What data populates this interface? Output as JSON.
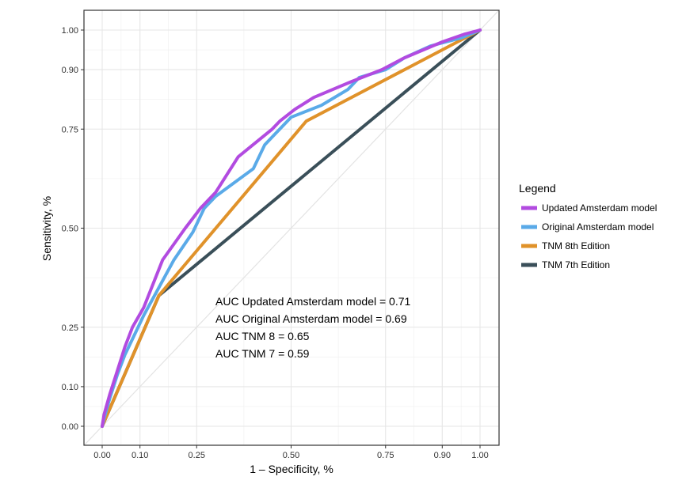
{
  "chart_data": {
    "type": "line",
    "xlabel": "1 – Specificity, %",
    "ylabel": "Sensitivity, %",
    "xlim": [
      0,
      1
    ],
    "ylim": [
      0,
      1
    ],
    "x_ticks": [
      0.0,
      0.1,
      0.25,
      0.5,
      0.75,
      0.9,
      1.0
    ],
    "x_tick_labels": [
      "0.00",
      "0.10",
      "0.25",
      "0.50",
      "0.75",
      "0.90",
      "1.00"
    ],
    "y_ticks": [
      0.0,
      0.1,
      0.25,
      0.5,
      0.75,
      0.9,
      1.0
    ],
    "y_tick_labels": [
      "0.00",
      "0.10",
      "0.25",
      "0.50",
      "0.75",
      "0.90",
      "1.00"
    ],
    "grid": true,
    "reference_diagonal": true,
    "legend_title": "Legend",
    "legend_position": "right",
    "series": [
      {
        "name": "Updated Amsterdam model",
        "color": "#b24be0",
        "points": [
          [
            0,
            0
          ],
          [
            0.005,
            0.03
          ],
          [
            0.02,
            0.08
          ],
          [
            0.04,
            0.14
          ],
          [
            0.06,
            0.2
          ],
          [
            0.08,
            0.25
          ],
          [
            0.11,
            0.3
          ],
          [
            0.16,
            0.42
          ],
          [
            0.22,
            0.5
          ],
          [
            0.26,
            0.55
          ],
          [
            0.3,
            0.59
          ],
          [
            0.36,
            0.68
          ],
          [
            0.45,
            0.75
          ],
          [
            0.47,
            0.77
          ],
          [
            0.51,
            0.8
          ],
          [
            0.56,
            0.83
          ],
          [
            0.66,
            0.87
          ],
          [
            0.74,
            0.9
          ],
          [
            0.8,
            0.93
          ],
          [
            0.9,
            0.97
          ],
          [
            0.96,
            0.99
          ],
          [
            1,
            1
          ]
        ]
      },
      {
        "name": "Original Amsterdam model",
        "color": "#5aaae8",
        "points": [
          [
            0,
            0
          ],
          [
            0.005,
            0.02
          ],
          [
            0.02,
            0.07
          ],
          [
            0.04,
            0.13
          ],
          [
            0.06,
            0.18
          ],
          [
            0.08,
            0.22
          ],
          [
            0.11,
            0.28
          ],
          [
            0.15,
            0.35
          ],
          [
            0.19,
            0.42
          ],
          [
            0.24,
            0.49
          ],
          [
            0.27,
            0.55
          ],
          [
            0.3,
            0.58
          ],
          [
            0.4,
            0.65
          ],
          [
            0.43,
            0.71
          ],
          [
            0.45,
            0.73
          ],
          [
            0.5,
            0.78
          ],
          [
            0.58,
            0.81
          ],
          [
            0.65,
            0.85
          ],
          [
            0.68,
            0.88
          ],
          [
            0.75,
            0.9
          ],
          [
            0.8,
            0.93
          ],
          [
            0.87,
            0.96
          ],
          [
            0.95,
            0.98
          ],
          [
            1,
            1
          ]
        ]
      },
      {
        "name": "TNM 8th Edition",
        "color": "#e0922a",
        "points": [
          [
            0,
            0
          ],
          [
            0.15,
            0.33
          ],
          [
            0.54,
            0.77
          ],
          [
            1,
            1
          ]
        ]
      },
      {
        "name": "TNM 7th Edition",
        "color": "#3a4f59",
        "points": [
          [
            0,
            0
          ],
          [
            0.15,
            0.33
          ],
          [
            1,
            1
          ]
        ]
      }
    ],
    "annotations": [
      "AUC Updated Amsterdam model =  0.71",
      "AUC Original Amsterdam model =  0.69",
      "AUC TNM 8 =  0.65",
      "AUC TNM 7 =  0.59"
    ]
  }
}
